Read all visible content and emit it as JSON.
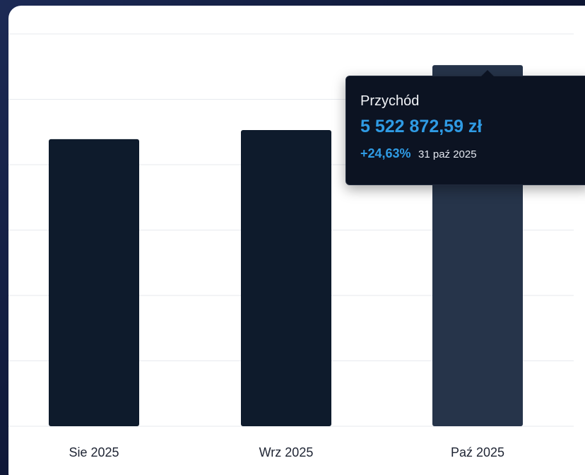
{
  "chart_data": {
    "type": "bar",
    "categories": [
      "Sie 2025",
      "Wrz 2025",
      "Paź 2025"
    ],
    "values": [
      4390000,
      4530000,
      5522872.59
    ],
    "ylim": [
      0,
      6000000
    ],
    "grid": true,
    "highlighted_index": 2,
    "colors": {
      "bar": "#0e1b2c",
      "bar_highlight": "#26344a",
      "grid": "#e7e9ee"
    }
  },
  "tooltip": {
    "title": "Przychód",
    "value": "5 522 872,59 zł",
    "change": "+24,63%",
    "date": "31 paź 2025"
  }
}
